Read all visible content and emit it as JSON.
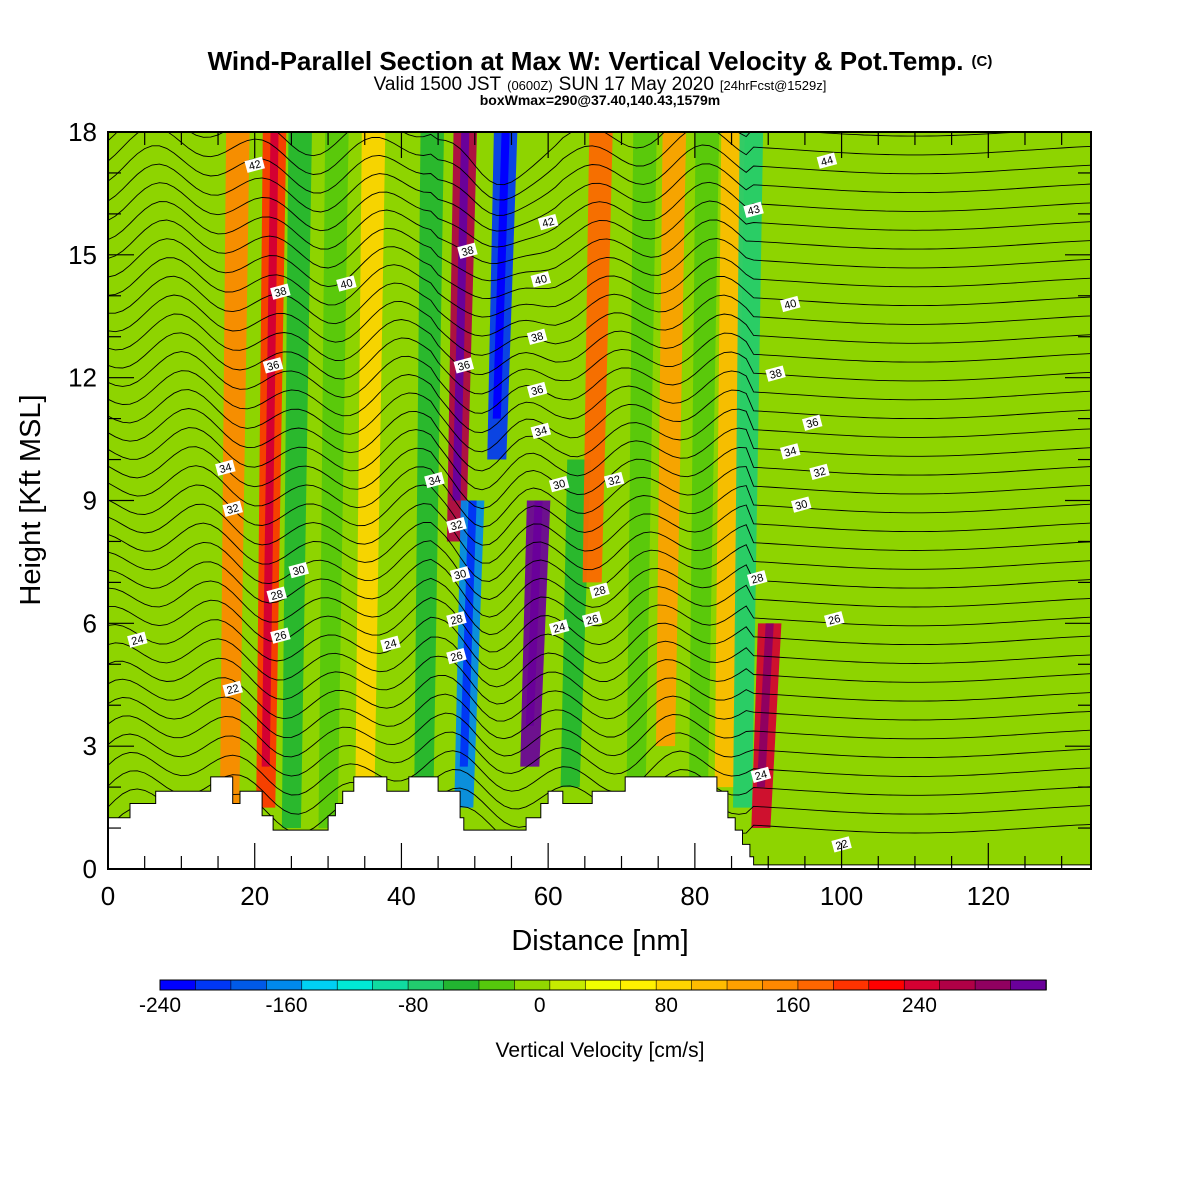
{
  "header": {
    "title_main": "Wind-Parallel Section at Max W: Vertical Velocity & Pot.Temp.",
    "title_copyright": "(C)",
    "valid_prefix": "Valid 1500 JST",
    "valid_utc": "(0600Z)",
    "valid_date": "SUN 17 May 2020",
    "forecast_info": "[24hrFcst@1529z]",
    "box_info": "boxWmax=290@37.40,140.43,1579m"
  },
  "chart_data": {
    "type": "heatmap",
    "xlabel": "Distance [nm]",
    "ylabel": "Height [Kft MSL]",
    "xlim": [
      0,
      134
    ],
    "ylim": [
      0,
      18
    ],
    "x_ticks": [
      0,
      20,
      40,
      60,
      80,
      100,
      120
    ],
    "y_ticks": [
      0,
      3,
      6,
      9,
      12,
      15,
      18
    ],
    "field": "Vertical Velocity [cm/s]",
    "colorbar": {
      "title": "Vertical Velocity [cm/s]",
      "min": -240,
      "max": 300,
      "step": 20,
      "tick_values": [
        -240,
        -160,
        -80,
        0,
        80,
        160,
        240
      ],
      "colors": [
        "#0000ff",
        "#0037f5",
        "#005ae8",
        "#0089ed",
        "#00d0f3",
        "#00e9d6",
        "#10dba0",
        "#22cc6e",
        "#22b531",
        "#56c80c",
        "#92d800",
        "#c6eb00",
        "#f0ff00",
        "#fff000",
        "#ffd400",
        "#ffbc00",
        "#ffa000",
        "#ff8800",
        "#ff6600",
        "#ff3300",
        "#ff0000",
        "#d40032",
        "#b00046",
        "#900060",
        "#6a009a"
      ]
    },
    "w_bands": [
      {
        "x": 16.5,
        "w": 100,
        "bottom": 0.5,
        "top": 18
      },
      {
        "x": 21.5,
        "w": 150,
        "bottom": 1.5,
        "top": 18
      },
      {
        "x": 25,
        "w": -70,
        "bottom": 1.0,
        "top": 18
      },
      {
        "x": 30,
        "w": -55,
        "bottom": 1.0,
        "top": 18
      },
      {
        "x": 35,
        "w": 50,
        "bottom": 1.5,
        "top": 18
      },
      {
        "x": 43,
        "w": -70,
        "bottom": 1.0,
        "top": 18
      },
      {
        "x": 47.5,
        "w": 200,
        "bottom": 8,
        "top": 18
      },
      {
        "x": 48.5,
        "w": -180,
        "bottom": 1.5,
        "top": 9
      },
      {
        "x": 53,
        "w": -220,
        "bottom": 10,
        "top": 18
      },
      {
        "x": 57.5,
        "w": 240,
        "bottom": 2.5,
        "top": 9
      },
      {
        "x": 63,
        "w": -80,
        "bottom": 2,
        "top": 10
      },
      {
        "x": 66,
        "w": 120,
        "bottom": 7,
        "top": 18
      },
      {
        "x": 72,
        "w": -60,
        "bottom": 2,
        "top": 18
      },
      {
        "x": 76,
        "w": 80,
        "bottom": 3,
        "top": 18
      },
      {
        "x": 80.5,
        "w": -60,
        "bottom": 2,
        "top": 18
      },
      {
        "x": 84,
        "w": 70,
        "bottom": 2,
        "top": 18
      },
      {
        "x": 86.5,
        "w": -90,
        "bottom": 1.5,
        "top": 18
      },
      {
        "x": 89,
        "w": 180,
        "bottom": 1.0,
        "top": 6
      }
    ],
    "theta_labels": [
      {
        "x": 4,
        "y": 5.6,
        "text": "24"
      },
      {
        "x": 17,
        "y": 4.4,
        "text": "22"
      },
      {
        "x": 16,
        "y": 9.8,
        "text": "34"
      },
      {
        "x": 17,
        "y": 8.8,
        "text": "32"
      },
      {
        "x": 20,
        "y": 17.2,
        "text": "42"
      },
      {
        "x": 23.5,
        "y": 14.1,
        "text": "38"
      },
      {
        "x": 22.5,
        "y": 12.3,
        "text": "36"
      },
      {
        "x": 26,
        "y": 7.3,
        "text": "30"
      },
      {
        "x": 23,
        "y": 6.7,
        "text": "28"
      },
      {
        "x": 23.5,
        "y": 5.7,
        "text": "26"
      },
      {
        "x": 32.5,
        "y": 14.3,
        "text": "40"
      },
      {
        "x": 38.5,
        "y": 5.5,
        "text": "24"
      },
      {
        "x": 44.5,
        "y": 9.5,
        "text": "34"
      },
      {
        "x": 49,
        "y": 15.1,
        "text": "38"
      },
      {
        "x": 48.5,
        "y": 12.3,
        "text": "36"
      },
      {
        "x": 47.5,
        "y": 8.4,
        "text": "32"
      },
      {
        "x": 48,
        "y": 7.2,
        "text": "30"
      },
      {
        "x": 47.5,
        "y": 6.1,
        "text": "28"
      },
      {
        "x": 47.5,
        "y": 5.2,
        "text": "26"
      },
      {
        "x": 60,
        "y": 15.8,
        "text": "42"
      },
      {
        "x": 59,
        "y": 14.4,
        "text": "40"
      },
      {
        "x": 58.5,
        "y": 13.0,
        "text": "38"
      },
      {
        "x": 58.5,
        "y": 11.7,
        "text": "36"
      },
      {
        "x": 59,
        "y": 10.7,
        "text": "34"
      },
      {
        "x": 61.5,
        "y": 9.4,
        "text": "30"
      },
      {
        "x": 69,
        "y": 9.5,
        "text": "32"
      },
      {
        "x": 61.5,
        "y": 5.9,
        "text": "24"
      },
      {
        "x": 67,
        "y": 6.8,
        "text": "28"
      },
      {
        "x": 66,
        "y": 6.1,
        "text": "26"
      },
      {
        "x": 88,
        "y": 16.1,
        "text": "43"
      },
      {
        "x": 98,
        "y": 17.3,
        "text": "44"
      },
      {
        "x": 93,
        "y": 13.8,
        "text": "40"
      },
      {
        "x": 91,
        "y": 12.1,
        "text": "38"
      },
      {
        "x": 96,
        "y": 10.9,
        "text": "36"
      },
      {
        "x": 93,
        "y": 10.2,
        "text": "34"
      },
      {
        "x": 97,
        "y": 9.7,
        "text": "32"
      },
      {
        "x": 94.5,
        "y": 8.9,
        "text": "30"
      },
      {
        "x": 88.5,
        "y": 7.1,
        "text": "28"
      },
      {
        "x": 99,
        "y": 6.1,
        "text": "26"
      },
      {
        "x": 89,
        "y": 2.3,
        "text": "24"
      },
      {
        "x": 100,
        "y": 0.6,
        "text": "22"
      }
    ],
    "terrain": [
      [
        0,
        1.25
      ],
      [
        3,
        1.25
      ],
      [
        3,
        1.6
      ],
      [
        6.5,
        1.6
      ],
      [
        6.5,
        1.9
      ],
      [
        14,
        1.9
      ],
      [
        14,
        2.25
      ],
      [
        17,
        2.25
      ],
      [
        17,
        1.6
      ],
      [
        18,
        1.6
      ],
      [
        18,
        1.9
      ],
      [
        21,
        1.9
      ],
      [
        21,
        1.3
      ],
      [
        22.5,
        1.3
      ],
      [
        22.5,
        0.95
      ],
      [
        30,
        0.95
      ],
      [
        30,
        1.3
      ],
      [
        31,
        1.3
      ],
      [
        31,
        1.6
      ],
      [
        32,
        1.6
      ],
      [
        32,
        1.9
      ],
      [
        33.5,
        1.9
      ],
      [
        33.5,
        2.25
      ],
      [
        38,
        2.25
      ],
      [
        38,
        1.9
      ],
      [
        41,
        1.9
      ],
      [
        41,
        2.25
      ],
      [
        45,
        2.25
      ],
      [
        45,
        1.9
      ],
      [
        48,
        1.9
      ],
      [
        48,
        1.25
      ],
      [
        48.5,
        1.25
      ],
      [
        48.5,
        0.95
      ],
      [
        57,
        0.95
      ],
      [
        57,
        1.25
      ],
      [
        59,
        1.25
      ],
      [
        59,
        1.6
      ],
      [
        60,
        1.6
      ],
      [
        60,
        1.9
      ],
      [
        62,
        1.9
      ],
      [
        62,
        1.6
      ],
      [
        66,
        1.6
      ],
      [
        66,
        1.9
      ],
      [
        70.5,
        1.9
      ],
      [
        70.5,
        2.25
      ],
      [
        83,
        2.25
      ],
      [
        83,
        1.9
      ],
      [
        84.5,
        1.9
      ],
      [
        84.5,
        1.25
      ],
      [
        85.5,
        1.25
      ],
      [
        85.5,
        0.95
      ],
      [
        86.5,
        0.95
      ],
      [
        86.5,
        0.6
      ],
      [
        87.5,
        0.6
      ],
      [
        87.5,
        0.3
      ],
      [
        88,
        0.3
      ],
      [
        88,
        0.1
      ],
      [
        134,
        0.1
      ]
    ]
  }
}
